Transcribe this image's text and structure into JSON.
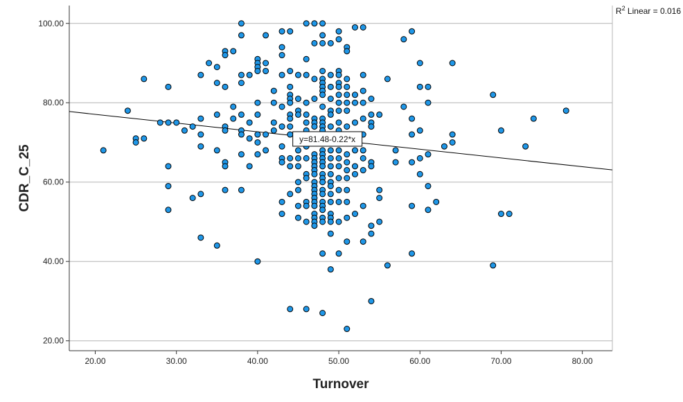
{
  "chart_data": {
    "type": "scatter",
    "xlabel": "Turnover",
    "ylabel": "CDR_C_25",
    "xlim": [
      16.8,
      83.7
    ],
    "ylim": [
      17.5,
      104.5
    ],
    "xticks": [
      20,
      30,
      40,
      50,
      60,
      70,
      80
    ],
    "yticks": [
      20,
      40,
      60,
      80,
      100
    ],
    "xtick_labels": [
      "20.00",
      "30.00",
      "40.00",
      "50.00",
      "60.00",
      "70.00",
      "80.00"
    ],
    "ytick_labels": [
      "20.00",
      "40.00",
      "60.00",
      "80.00",
      "100.00"
    ],
    "grid": "horizontal",
    "point_color": "#1f97e8",
    "fit_line": {
      "intercept": 81.48,
      "slope": -0.22,
      "label": "y=81.48-0.22*x",
      "label_at_x": 48.6
    },
    "r2_prefix": "R",
    "r2_sup": "2",
    "r2_suffix": " Linear = 0.016",
    "points": [
      [
        21,
        68
      ],
      [
        24,
        78
      ],
      [
        25,
        71
      ],
      [
        25,
        70
      ],
      [
        26,
        71
      ],
      [
        26,
        86
      ],
      [
        28,
        75
      ],
      [
        29,
        84
      ],
      [
        29,
        75
      ],
      [
        29,
        64
      ],
      [
        29,
        59
      ],
      [
        29,
        53
      ],
      [
        30,
        75
      ],
      [
        31,
        73
      ],
      [
        32,
        74
      ],
      [
        32,
        56
      ],
      [
        33,
        87
      ],
      [
        33,
        76
      ],
      [
        33,
        72
      ],
      [
        33,
        69
      ],
      [
        33,
        57
      ],
      [
        33,
        46
      ],
      [
        34,
        90
      ],
      [
        35,
        89
      ],
      [
        35,
        85
      ],
      [
        35,
        77
      ],
      [
        35,
        68
      ],
      [
        35,
        44
      ],
      [
        36,
        93
      ],
      [
        36,
        92
      ],
      [
        36,
        84
      ],
      [
        36,
        74
      ],
      [
        36,
        73
      ],
      [
        36,
        65
      ],
      [
        36,
        64
      ],
      [
        36,
        58
      ],
      [
        37,
        93
      ],
      [
        37,
        79
      ],
      [
        37,
        76
      ],
      [
        38,
        100
      ],
      [
        38,
        97
      ],
      [
        38,
        87
      ],
      [
        38,
        85
      ],
      [
        38,
        77
      ],
      [
        38,
        73
      ],
      [
        38,
        72
      ],
      [
        38,
        67
      ],
      [
        38,
        58
      ],
      [
        39,
        87
      ],
      [
        39,
        75
      ],
      [
        39,
        71
      ],
      [
        39,
        64
      ],
      [
        40,
        91
      ],
      [
        40,
        90
      ],
      [
        40,
        89
      ],
      [
        40,
        88
      ],
      [
        40,
        80
      ],
      [
        40,
        77
      ],
      [
        40,
        72
      ],
      [
        40,
        70
      ],
      [
        40,
        67
      ],
      [
        40,
        40
      ],
      [
        41,
        97
      ],
      [
        41,
        90
      ],
      [
        41,
        88
      ],
      [
        41,
        72
      ],
      [
        41,
        68
      ],
      [
        42,
        83
      ],
      [
        42,
        75
      ],
      [
        42,
        73
      ],
      [
        42,
        80
      ],
      [
        43,
        98
      ],
      [
        43,
        94
      ],
      [
        43,
        92
      ],
      [
        43,
        87
      ],
      [
        43,
        79
      ],
      [
        43,
        74
      ],
      [
        43,
        69
      ],
      [
        43,
        66
      ],
      [
        43,
        65
      ],
      [
        43,
        55
      ],
      [
        43,
        52
      ],
      [
        44,
        98
      ],
      [
        44,
        88
      ],
      [
        44,
        84
      ],
      [
        44,
        82
      ],
      [
        44,
        81
      ],
      [
        44,
        80
      ],
      [
        44,
        77
      ],
      [
        44,
        76
      ],
      [
        44,
        74
      ],
      [
        44,
        72
      ],
      [
        44,
        66
      ],
      [
        44,
        64
      ],
      [
        44,
        57
      ],
      [
        44,
        28
      ],
      [
        45,
        87
      ],
      [
        45,
        81
      ],
      [
        45,
        78
      ],
      [
        45,
        77
      ],
      [
        45,
        71
      ],
      [
        45,
        70
      ],
      [
        45,
        68
      ],
      [
        45,
        66
      ],
      [
        45,
        64
      ],
      [
        45,
        60
      ],
      [
        45,
        58
      ],
      [
        45,
        54
      ],
      [
        45,
        51
      ],
      [
        46,
        100
      ],
      [
        46,
        91
      ],
      [
        46,
        87
      ],
      [
        46,
        80
      ],
      [
        46,
        77
      ],
      [
        46,
        75
      ],
      [
        46,
        73
      ],
      [
        46,
        72
      ],
      [
        46,
        69
      ],
      [
        46,
        66
      ],
      [
        46,
        62
      ],
      [
        46,
        61
      ],
      [
        46,
        55
      ],
      [
        46,
        54
      ],
      [
        46,
        50
      ],
      [
        46,
        28
      ],
      [
        47,
        100
      ],
      [
        47,
        95
      ],
      [
        47,
        86
      ],
      [
        47,
        81
      ],
      [
        47,
        76
      ],
      [
        47,
        75
      ],
      [
        47,
        74
      ],
      [
        47,
        72
      ],
      [
        47,
        70
      ],
      [
        47,
        67
      ],
      [
        47,
        66
      ],
      [
        47,
        65
      ],
      [
        47,
        64
      ],
      [
        47,
        63
      ],
      [
        47,
        62
      ],
      [
        47,
        60
      ],
      [
        47,
        59
      ],
      [
        47,
        58
      ],
      [
        47,
        57
      ],
      [
        47,
        56
      ],
      [
        47,
        55
      ],
      [
        47,
        54
      ],
      [
        47,
        52
      ],
      [
        47,
        51
      ],
      [
        47,
        50
      ],
      [
        47,
        49
      ],
      [
        48,
        100
      ],
      [
        48,
        97
      ],
      [
        48,
        95
      ],
      [
        48,
        88
      ],
      [
        48,
        86
      ],
      [
        48,
        85
      ],
      [
        48,
        84
      ],
      [
        48,
        83
      ],
      [
        48,
        82
      ],
      [
        48,
        79
      ],
      [
        48,
        76
      ],
      [
        48,
        75
      ],
      [
        48,
        74
      ],
      [
        48,
        73
      ],
      [
        48,
        71
      ],
      [
        48,
        70
      ],
      [
        48,
        68
      ],
      [
        48,
        67
      ],
      [
        48,
        66
      ],
      [
        48,
        65
      ],
      [
        48,
        64
      ],
      [
        48,
        62
      ],
      [
        48,
        61
      ],
      [
        48,
        60
      ],
      [
        48,
        58
      ],
      [
        48,
        57
      ],
      [
        48,
        55
      ],
      [
        48,
        54
      ],
      [
        48,
        53
      ],
      [
        48,
        51
      ],
      [
        48,
        50
      ],
      [
        48,
        42
      ],
      [
        48,
        27
      ],
      [
        49,
        95
      ],
      [
        49,
        87
      ],
      [
        49,
        84
      ],
      [
        49,
        81
      ],
      [
        49,
        78
      ],
      [
        49,
        77
      ],
      [
        49,
        74
      ],
      [
        49,
        72
      ],
      [
        49,
        70
      ],
      [
        49,
        68
      ],
      [
        49,
        66
      ],
      [
        49,
        64
      ],
      [
        49,
        62
      ],
      [
        49,
        60
      ],
      [
        49,
        59
      ],
      [
        49,
        57
      ],
      [
        49,
        55
      ],
      [
        49,
        52
      ],
      [
        49,
        51
      ],
      [
        49,
        50
      ],
      [
        49,
        47
      ],
      [
        49,
        38
      ],
      [
        50,
        98
      ],
      [
        50,
        96
      ],
      [
        50,
        88
      ],
      [
        50,
        87
      ],
      [
        50,
        85
      ],
      [
        50,
        84
      ],
      [
        50,
        82
      ],
      [
        50,
        80
      ],
      [
        50,
        78
      ],
      [
        50,
        75
      ],
      [
        50,
        73
      ],
      [
        50,
        71
      ],
      [
        50,
        70
      ],
      [
        50,
        68
      ],
      [
        50,
        66
      ],
      [
        50,
        64
      ],
      [
        50,
        61
      ],
      [
        50,
        58
      ],
      [
        50,
        55
      ],
      [
        50,
        50
      ],
      [
        50,
        42
      ],
      [
        51,
        94
      ],
      [
        51,
        93
      ],
      [
        51,
        86
      ],
      [
        51,
        84
      ],
      [
        51,
        82
      ],
      [
        51,
        80
      ],
      [
        51,
        78
      ],
      [
        51,
        74
      ],
      [
        51,
        72
      ],
      [
        51,
        70
      ],
      [
        51,
        67
      ],
      [
        51,
        65
      ],
      [
        51,
        63
      ],
      [
        51,
        61
      ],
      [
        51,
        58
      ],
      [
        51,
        55
      ],
      [
        51,
        51
      ],
      [
        51,
        45
      ],
      [
        51,
        23
      ],
      [
        52,
        99
      ],
      [
        52,
        82
      ],
      [
        52,
        80
      ],
      [
        52,
        75
      ],
      [
        52,
        70
      ],
      [
        52,
        68
      ],
      [
        52,
        64
      ],
      [
        52,
        62
      ],
      [
        52,
        52
      ],
      [
        53,
        99
      ],
      [
        53,
        87
      ],
      [
        53,
        83
      ],
      [
        53,
        80
      ],
      [
        53,
        76
      ],
      [
        53,
        72
      ],
      [
        53,
        68
      ],
      [
        53,
        66
      ],
      [
        53,
        63
      ],
      [
        53,
        54
      ],
      [
        53,
        45
      ],
      [
        54,
        81
      ],
      [
        54,
        77
      ],
      [
        54,
        75
      ],
      [
        54,
        74
      ],
      [
        54,
        65
      ],
      [
        54,
        64
      ],
      [
        54,
        49
      ],
      [
        54,
        47
      ],
      [
        54,
        30
      ],
      [
        55,
        77
      ],
      [
        55,
        58
      ],
      [
        55,
        56
      ],
      [
        55,
        50
      ],
      [
        56,
        86
      ],
      [
        56,
        39
      ],
      [
        57,
        68
      ],
      [
        57,
        65
      ],
      [
        58,
        96
      ],
      [
        58,
        79
      ],
      [
        59,
        98
      ],
      [
        59,
        76
      ],
      [
        59,
        72
      ],
      [
        59,
        65
      ],
      [
        59,
        54
      ],
      [
        59,
        42
      ],
      [
        60,
        90
      ],
      [
        60,
        84
      ],
      [
        60,
        73
      ],
      [
        60,
        66
      ],
      [
        60,
        62
      ],
      [
        61,
        84
      ],
      [
        61,
        80
      ],
      [
        61,
        67
      ],
      [
        61,
        59
      ],
      [
        61,
        53
      ],
      [
        62,
        55
      ],
      [
        63,
        69
      ],
      [
        64,
        90
      ],
      [
        64,
        72
      ],
      [
        64,
        70
      ],
      [
        69,
        82
      ],
      [
        69,
        39
      ],
      [
        70,
        73
      ],
      [
        70,
        52
      ],
      [
        71,
        52
      ],
      [
        73,
        69
      ],
      [
        74,
        76
      ],
      [
        78,
        78
      ]
    ]
  }
}
